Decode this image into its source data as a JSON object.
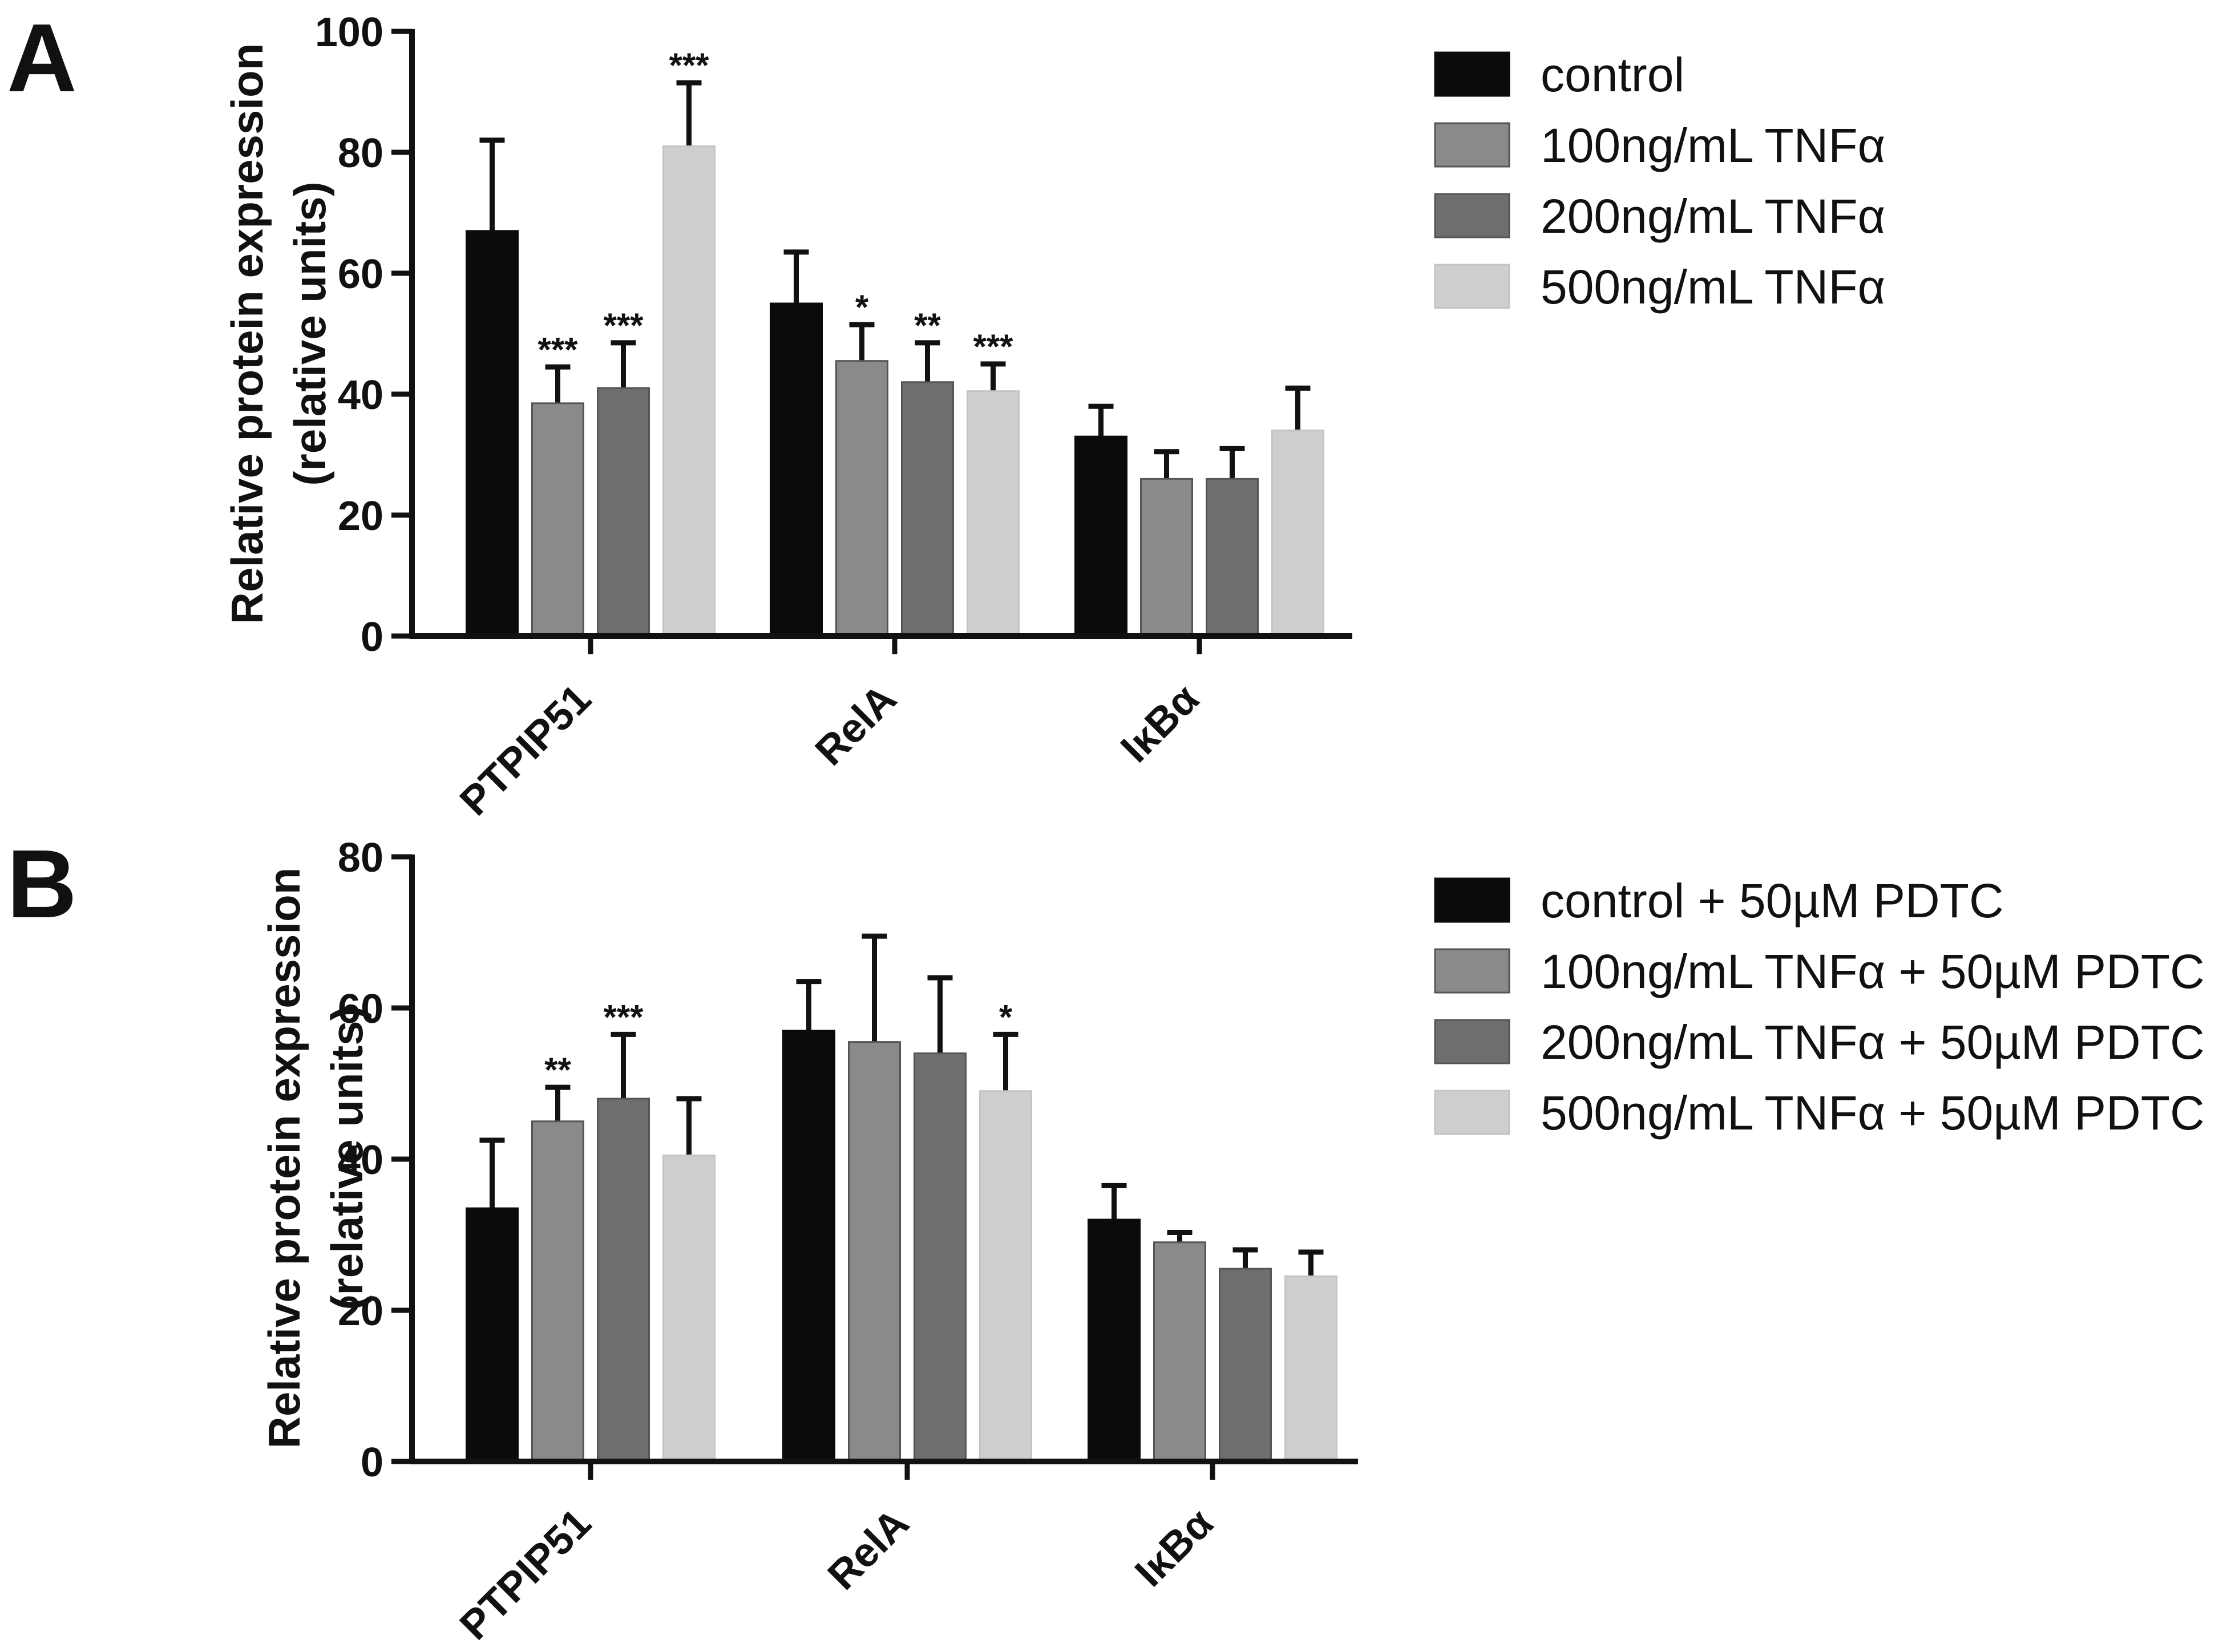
{
  "chart_data": [
    {
      "panel": "A",
      "type": "bar",
      "ylabel_line1": "Relative protein expression",
      "ylabel_line2": "(relative units)",
      "ylim": [
        0,
        100
      ],
      "yticks": [
        0,
        20,
        40,
        60,
        80,
        100
      ],
      "categories": [
        "PTPIP51",
        "RelA",
        "IκBα"
      ],
      "series": [
        {
          "name": "control",
          "color": "#0b0b0b",
          "values": [
            67,
            55,
            33
          ],
          "errors": [
            15,
            8.5,
            5
          ],
          "significance": [
            "",
            "",
            ""
          ]
        },
        {
          "name": "100ng/mL TNFα",
          "color": "#8a8a8d",
          "values": [
            38.5,
            45.5,
            26
          ],
          "errors": [
            6,
            6,
            4.5
          ],
          "significance": [
            "***",
            "*",
            ""
          ]
        },
        {
          "name": "200ng/mL TNFα",
          "color": "#6d6e6e",
          "values": [
            41,
            42,
            26
          ],
          "errors": [
            7.5,
            6.5,
            5
          ],
          "significance": [
            "***",
            "**",
            ""
          ]
        },
        {
          "name": "500ng/mL TNFα",
          "color": "#cecece",
          "values": [
            81,
            40.5,
            34
          ],
          "errors": [
            10.5,
            4.5,
            7
          ],
          "significance": [
            "***",
            "***",
            ""
          ]
        }
      ]
    },
    {
      "panel": "B",
      "type": "bar",
      "ylabel_line1": "Relative protein expression",
      "ylabel_line2": "(relative units)",
      "ylim": [
        0,
        80
      ],
      "yticks": [
        0,
        20,
        40,
        60,
        80
      ],
      "categories": [
        "PTPIP51",
        "RelA",
        "IκBα"
      ],
      "series": [
        {
          "name": "control + 50µM PDTC",
          "color": "#0b0b0b",
          "values": [
            33.5,
            57,
            32
          ],
          "errors": [
            9,
            6.5,
            4.5
          ],
          "significance": [
            "",
            "",
            ""
          ]
        },
        {
          "name": "100ng/mL TNFα + 50µM PDTC",
          "color": "#8a8a8d",
          "values": [
            45,
            55.5,
            29
          ],
          "errors": [
            4.5,
            14,
            1.3
          ],
          "significance": [
            "**",
            "",
            ""
          ]
        },
        {
          "name": "200ng/mL TNFα + 50µM PDTC",
          "color": "#6d6e6e",
          "values": [
            48,
            54,
            25.5
          ],
          "errors": [
            8.5,
            10,
            2.5
          ],
          "significance": [
            "***",
            "",
            ""
          ]
        },
        {
          "name": "500ng/mL TNFα + 50µM PDTC",
          "color": "#cecece",
          "values": [
            40.5,
            49,
            24.5
          ],
          "errors": [
            7.5,
            7.5,
            3.2
          ],
          "significance": [
            "",
            "*",
            ""
          ]
        }
      ]
    }
  ]
}
